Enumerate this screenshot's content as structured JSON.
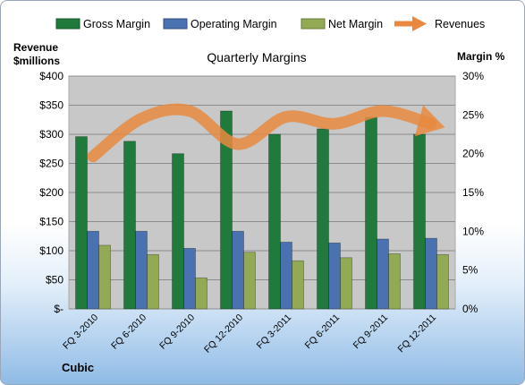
{
  "chart_data": {
    "type": "bar",
    "title": "Quarterly Margins",
    "company": "Cubic",
    "categories": [
      "FQ 3-2010",
      "FQ 6-2010",
      "FQ 9-2010",
      "FQ 12-2010",
      "FQ 3-2011",
      "FQ 6-2011",
      "FQ 9-2011",
      "FQ 12-2011"
    ],
    "y_left": {
      "label_line1": "Revenue",
      "label_line2": "$millions",
      "ylim": [
        0,
        400
      ],
      "tick_labels": [
        "$-",
        "$50",
        "$100",
        "$150",
        "$200",
        "$250",
        "$300",
        "$350",
        "$400"
      ]
    },
    "y_right": {
      "label": "Margin %",
      "ylim": [
        0,
        30
      ],
      "tick_labels": [
        "0%",
        "5%",
        "10%",
        "15%",
        "20%",
        "25%",
        "30%"
      ]
    },
    "grid": true,
    "legend_position": "top",
    "series": [
      {
        "name": "Gross Margin",
        "axis": "right",
        "color": "#1f7a3c",
        "values": [
          22.2,
          21.6,
          20.0,
          25.5,
          22.5,
          23.2,
          24.7,
          22.5
        ]
      },
      {
        "name": "Operating Margin",
        "axis": "right",
        "color": "#4a72b0",
        "values": [
          10.0,
          10.0,
          7.8,
          10.0,
          8.6,
          8.5,
          9.0,
          9.1
        ]
      },
      {
        "name": "Net Margin",
        "axis": "right",
        "color": "#93aa55",
        "values": [
          8.2,
          7.0,
          4.0,
          7.3,
          6.2,
          6.6,
          7.1,
          7.0
        ]
      },
      {
        "name": "Revenues",
        "axis": "left",
        "type": "line",
        "color": "#e8893f",
        "values": [
          262,
          327,
          340,
          283,
          330,
          318,
          340,
          318
        ]
      }
    ]
  }
}
